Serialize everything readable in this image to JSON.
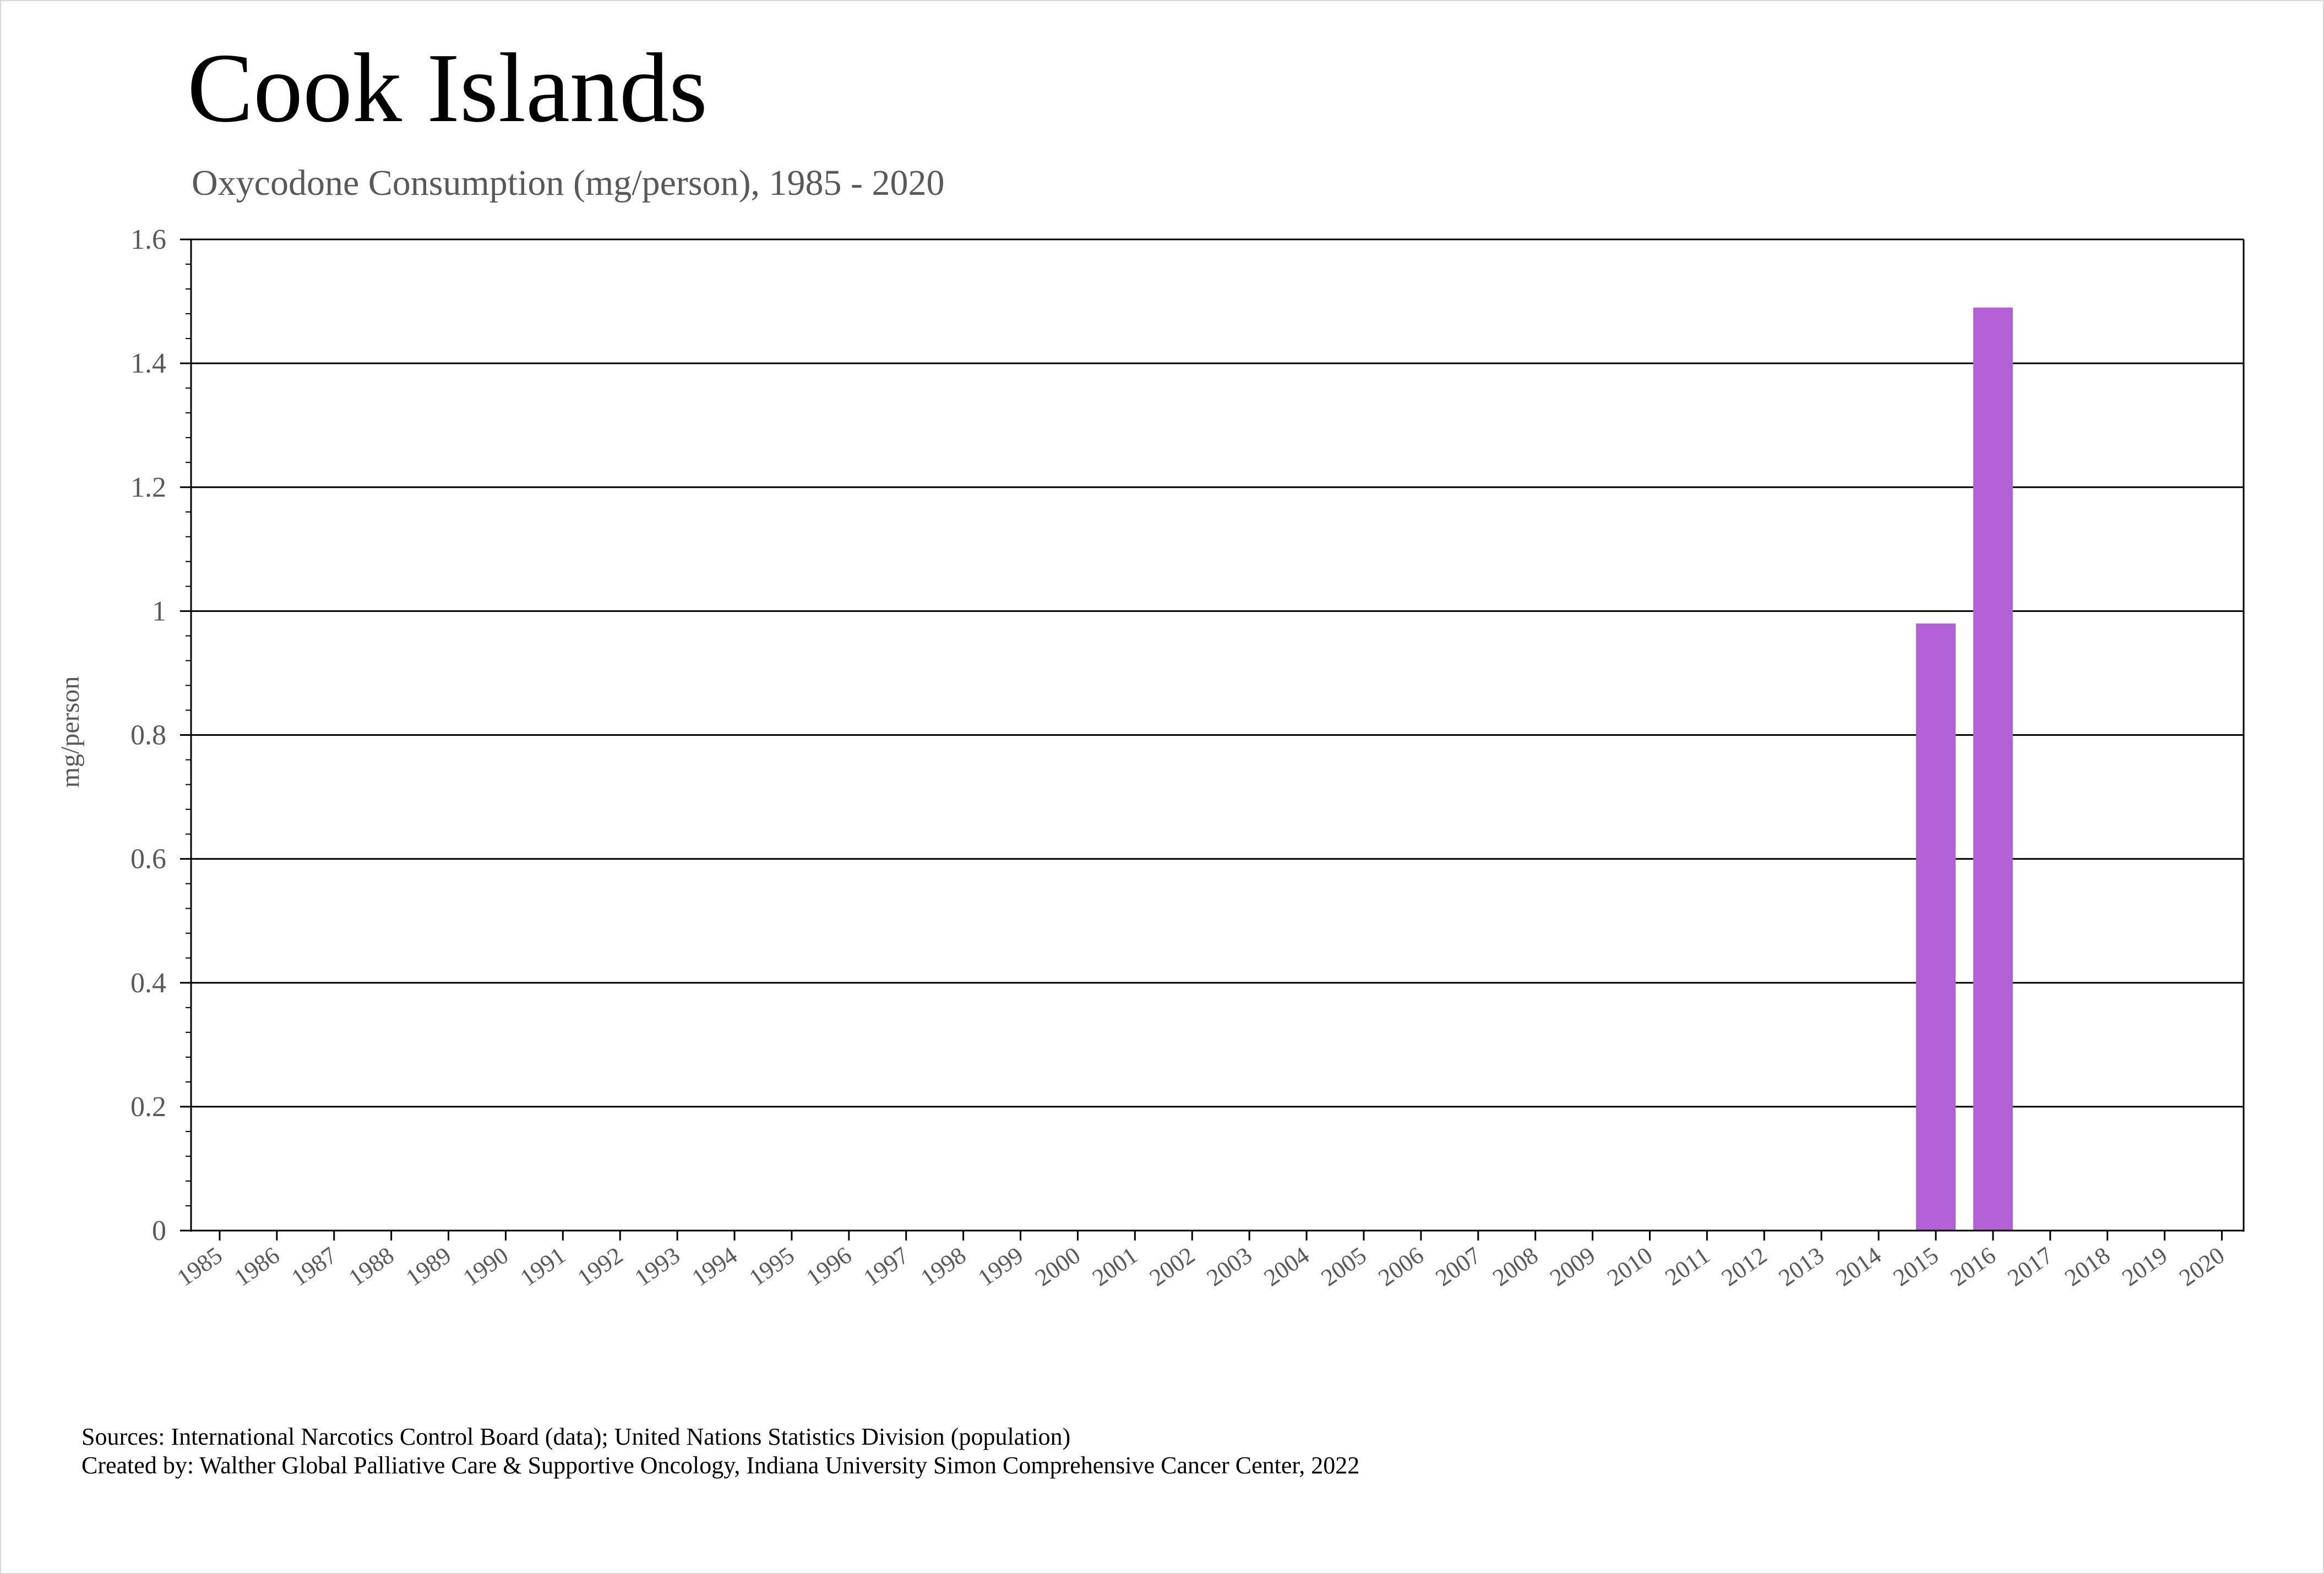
{
  "title": "Cook Islands",
  "subtitle": "Oxycodone Consumption (mg/person), 1985 - 2020",
  "footer": {
    "sources": "Sources: International Narcotics Control Board (data); United Nations Statistics Division (population)",
    "created_by": "Created by: Walther Global Palliative Care & Supportive Oncology, Indiana University Simon Comprehensive Cancer Center, 2022"
  },
  "colors": {
    "bar": "#b262d6",
    "grid": "#000000",
    "tick_label": "#595959"
  },
  "chart_data": {
    "type": "bar",
    "title": "Cook Islands",
    "subtitle": "Oxycodone Consumption (mg/person), 1985 - 2020",
    "xlabel": "",
    "ylabel": "mg/person",
    "ylim": [
      0,
      1.6
    ],
    "yticks": [
      0,
      0.2,
      0.4,
      0.6,
      0.8,
      1,
      1.2,
      1.4,
      1.6
    ],
    "ytick_labels": [
      "0",
      "0.2",
      "0.4",
      "0.6",
      "0.8",
      "1",
      "1.2",
      "1.4",
      "1.6"
    ],
    "grid": true,
    "legend": "none",
    "categories": [
      "1985",
      "1986",
      "1987",
      "1988",
      "1989",
      "1990",
      "1991",
      "1992",
      "1993",
      "1994",
      "1995",
      "1996",
      "1997",
      "1998",
      "1999",
      "2000",
      "2001",
      "2002",
      "2003",
      "2004",
      "2005",
      "2006",
      "2007",
      "2008",
      "2009",
      "2010",
      "2011",
      "2012",
      "2013",
      "2014",
      "2015",
      "2016",
      "2017",
      "2018",
      "2019",
      "2020"
    ],
    "values": [
      0,
      0,
      0,
      0,
      0,
      0,
      0,
      0,
      0,
      0,
      0,
      0,
      0,
      0,
      0,
      0,
      0,
      0,
      0,
      0,
      0,
      0,
      0,
      0,
      0,
      0,
      0,
      0,
      0,
      0,
      0.98,
      1.49,
      0,
      0,
      0,
      0
    ]
  }
}
